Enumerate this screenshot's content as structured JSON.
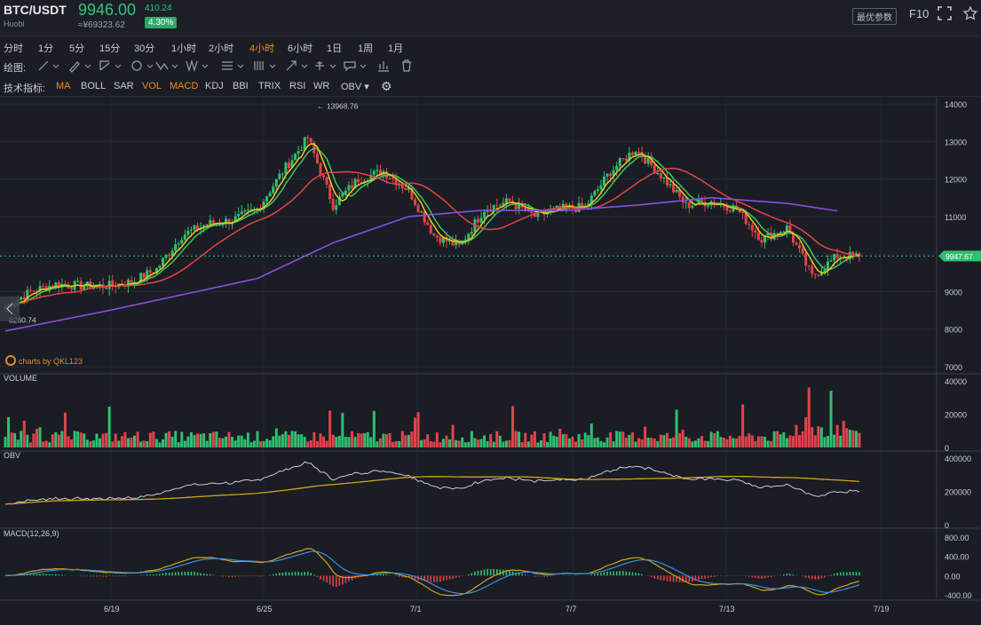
{
  "header": {
    "pair": "BTC/USDT",
    "exchange": "Huobi",
    "price": "9946.00",
    "cny_price": "≈¥69323.62",
    "change": "410.24",
    "change_pct": "4.30%",
    "settings_button": "最优参数",
    "f10_label": "F10",
    "icons": [
      "fullscreen-icon",
      "star-icon"
    ]
  },
  "timeframes": {
    "items": [
      "分时",
      "1分",
      "5分",
      "15分",
      "30分",
      "1小时",
      "2小时",
      "4小时",
      "6小时",
      "1日",
      "1周",
      "1月"
    ],
    "active": "4小时"
  },
  "drawing": {
    "label": "绘图:",
    "tools": [
      "line-tool-icon",
      "pen-tool-icon",
      "channel-tool-icon",
      "circle-tool-icon",
      "pattern-tool-icon",
      "wave-tool-icon",
      "fib-tool-icon",
      "gann-tool-icon",
      "arrow-tool-icon",
      "measure-tool-icon",
      "comment-tool-icon",
      "bar-chart-icon",
      "trash-icon"
    ]
  },
  "indicators": {
    "label": "技术指标:",
    "items": [
      "MA",
      "BOLL",
      "SAR",
      "VOL",
      "MACD",
      "KDJ",
      "BBI",
      "TRIX",
      "RSI",
      "WR",
      "OBV"
    ],
    "active": [
      "MA",
      "VOL",
      "MACD"
    ],
    "settings_icon": "gear-icon"
  },
  "watermark": "charts by QKL123",
  "colors": {
    "up": "#2fbf71",
    "down": "#e2434b",
    "ma5": "#f5c518",
    "ma10": "#3cc46a",
    "ma30": "#e2434b",
    "ma60": "#8a4de0",
    "obv": "#c9ccd3",
    "obvma": "#d6a21c",
    "macd_dif": "#d6a21c",
    "macd_dea": "#3a8fe0",
    "price_tag": "#2fbf71"
  },
  "chart_data": [
    {
      "type": "candlestick",
      "title": "",
      "ylim": [
        7000,
        14000
      ],
      "y_ticks": [
        "14000",
        "13000",
        "12000",
        "11000",
        "10000",
        "9000",
        "8000",
        "7000"
      ],
      "x_ticks": [
        "6/19",
        "6/25",
        "7/1",
        "7/7",
        "7/13",
        "7/19"
      ],
      "annotations": {
        "high": "13968.76",
        "low": "8260.74",
        "last_price": "9947.67"
      },
      "series": [
        {
          "name": "close",
          "x": [
            "6/15",
            "6/16",
            "6/17",
            "6/18",
            "6/19",
            "6/20",
            "6/21",
            "6/22",
            "6/23",
            "6/24",
            "6/25",
            "6/26",
            "6/27",
            "6/28",
            "6/29",
            "6/30",
            "7/1",
            "7/2",
            "7/3",
            "7/4",
            "7/5",
            "7/6",
            "7/7",
            "7/8",
            "7/9",
            "7/10",
            "7/11",
            "7/12",
            "7/13",
            "7/14",
            "7/15",
            "7/16",
            "7/17",
            "7/18"
          ],
          "values": [
            8600,
            9000,
            9200,
            9150,
            9150,
            9250,
            9600,
            10500,
            10800,
            10900,
            11200,
            12200,
            13100,
            11300,
            12000,
            12200,
            11700,
            10500,
            10200,
            11200,
            11400,
            11000,
            11200,
            11250,
            12200,
            12800,
            12100,
            11300,
            11400,
            11200,
            10400,
            10700,
            9400,
            9946
          ]
        },
        {
          "name": "ma60",
          "x": [
            "6/15",
            "6/19",
            "6/25",
            "6/28",
            "7/1",
            "7/4",
            "7/7",
            "7/10",
            "7/13",
            "7/16",
            "7/18"
          ],
          "values": [
            7950,
            8480,
            9350,
            10300,
            11000,
            11170,
            11150,
            11300,
            11500,
            11350,
            11150
          ]
        }
      ]
    },
    {
      "type": "bar",
      "title": "VOLUME",
      "ylim": [
        0,
        40000
      ],
      "y_ticks": [
        "40000",
        "20000",
        "0"
      ]
    },
    {
      "type": "line",
      "title": "OBV",
      "ylim": [
        0,
        400000
      ],
      "y_ticks": [
        "400000",
        "200000",
        "0"
      ]
    },
    {
      "type": "line",
      "title": "MACD(12,26,9)",
      "ylim": [
        -400,
        800
      ],
      "y_ticks": [
        "800.00",
        "400.00",
        "0.00",
        "-400.00"
      ]
    }
  ]
}
